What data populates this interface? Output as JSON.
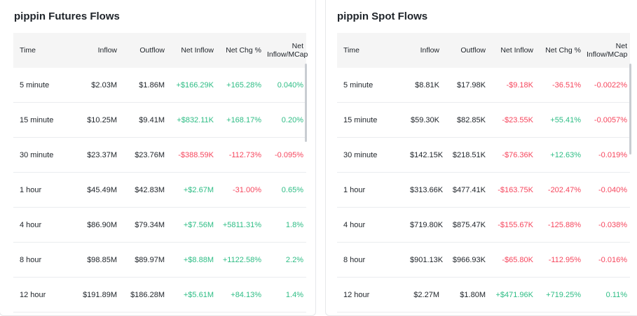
{
  "panels": [
    {
      "title": "pippin Futures Flows",
      "columns": [
        "Time",
        "Inflow",
        "Outflow",
        "Net Inflow",
        "Net Chg %",
        "Net Inflow/MCap"
      ],
      "rows": [
        [
          "5 minute",
          "$2.03M",
          "$1.86M",
          "+$166.29K",
          "+165.28%",
          "0.040%"
        ],
        [
          "15 minute",
          "$10.25M",
          "$9.41M",
          "+$832.11K",
          "+168.17%",
          "0.20%"
        ],
        [
          "30 minute",
          "$23.37M",
          "$23.76M",
          "-$388.59K",
          "-112.73%",
          "-0.095%"
        ],
        [
          "1 hour",
          "$45.49M",
          "$42.83M",
          "+$2.67M",
          "-31.00%",
          "0.65%"
        ],
        [
          "4 hour",
          "$86.90M",
          "$79.34M",
          "+$7.56M",
          "+5811.31%",
          "1.8%"
        ],
        [
          "8 hour",
          "$98.85M",
          "$89.97M",
          "+$8.88M",
          "+1122.58%",
          "2.2%"
        ],
        [
          "12 hour",
          "$191.89M",
          "$186.28M",
          "+$5.61M",
          "+84.13%",
          "1.4%"
        ]
      ]
    },
    {
      "title": "pippin Spot Flows",
      "columns": [
        "Time",
        "Inflow",
        "Outflow",
        "Net Inflow",
        "Net Chg %",
        "Net Inflow/MCap"
      ],
      "rows": [
        [
          "5 minute",
          "$8.81K",
          "$17.98K",
          "-$9.18K",
          "-36.51%",
          "-0.0022%"
        ],
        [
          "15 minute",
          "$59.30K",
          "$82.85K",
          "-$23.55K",
          "+55.41%",
          "-0.0057%"
        ],
        [
          "30 minute",
          "$142.15K",
          "$218.51K",
          "-$76.36K",
          "+12.63%",
          "-0.019%"
        ],
        [
          "1 hour",
          "$313.66K",
          "$477.41K",
          "-$163.75K",
          "-202.47%",
          "-0.040%"
        ],
        [
          "4 hour",
          "$719.80K",
          "$875.47K",
          "-$155.67K",
          "-125.88%",
          "-0.038%"
        ],
        [
          "8 hour",
          "$901.13K",
          "$966.93K",
          "-$65.80K",
          "-112.95%",
          "-0.016%"
        ],
        [
          "12 hour",
          "$2.27M",
          "$1.80M",
          "+$471.96K",
          "+719.25%",
          "0.11%"
        ]
      ]
    }
  ]
}
